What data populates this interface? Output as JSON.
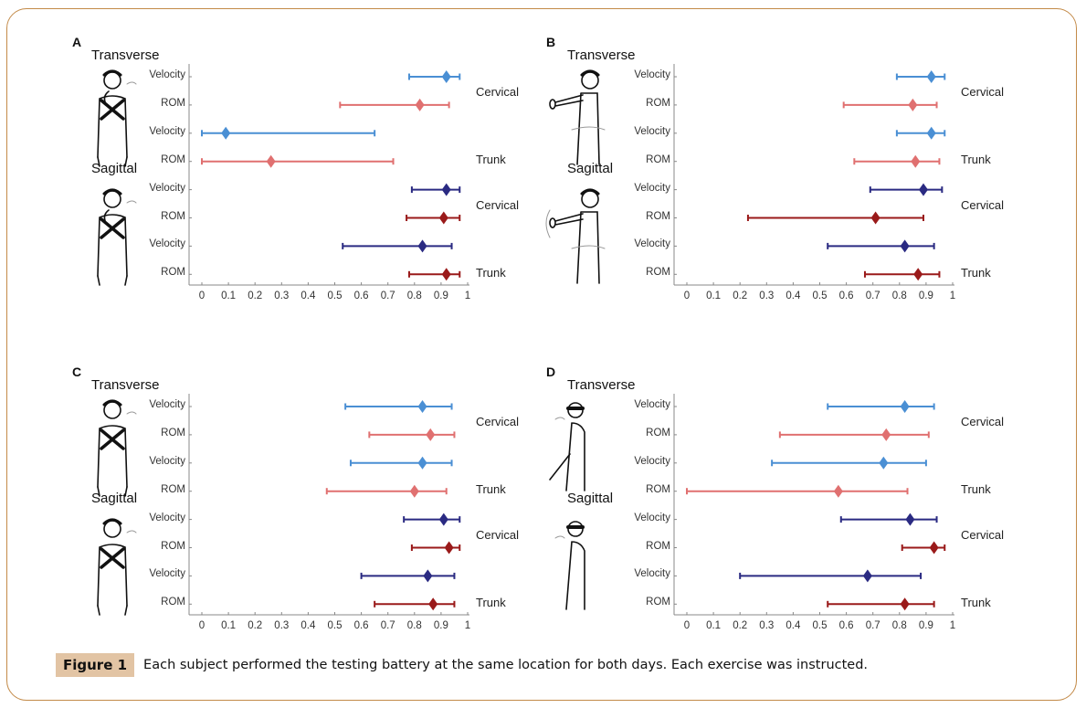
{
  "caption": {
    "tag": "Figure 1",
    "text": "Each subject performed the testing battery at the same location for both days. Each exercise was instructed."
  },
  "colors": {
    "transverse_velocity": "#4a8fd4",
    "transverse_rom": "#e07070",
    "sagittal_velocity": "#2a2a82",
    "sagittal_rom": "#9a1a1a",
    "frame": "#c38a48",
    "caption_tag_bg": "#e2c4a4"
  },
  "chart_data": [
    {
      "panel": "A",
      "type": "scatter",
      "subtype": "point-with-interval",
      "plane_titles": [
        "Transverse",
        "Sagittal"
      ],
      "region_labels": [
        "Cervical",
        "Trunk",
        "Cervical",
        "Trunk"
      ],
      "xlim": [
        0,
        1
      ],
      "xticks": [
        "0",
        "0.1",
        "0.2",
        "0.3",
        "0.4",
        "0.5",
        "0.6",
        "0.7",
        "0.8",
        "0.9",
        "1"
      ],
      "rows": [
        {
          "label": "Velocity",
          "plane": "Transverse",
          "region": "Cervical",
          "series": "transverse_velocity",
          "value": 0.92,
          "lower": 0.78,
          "upper": 0.97
        },
        {
          "label": "ROM",
          "plane": "Transverse",
          "region": "Cervical",
          "series": "transverse_rom",
          "value": 0.82,
          "lower": 0.52,
          "upper": 0.93
        },
        {
          "label": "Velocity",
          "plane": "Transverse",
          "region": "Trunk",
          "series": "transverse_velocity",
          "value": 0.09,
          "lower": 0.0,
          "upper": 0.65
        },
        {
          "label": "ROM",
          "plane": "Transverse",
          "region": "Trunk",
          "series": "transverse_rom",
          "value": 0.26,
          "lower": 0.0,
          "upper": 0.72
        },
        {
          "label": "Velocity",
          "plane": "Sagittal",
          "region": "Cervical",
          "series": "sagittal_velocity",
          "value": 0.92,
          "lower": 0.79,
          "upper": 0.97
        },
        {
          "label": "ROM",
          "plane": "Sagittal",
          "region": "Cervical",
          "series": "sagittal_rom",
          "value": 0.91,
          "lower": 0.77,
          "upper": 0.97
        },
        {
          "label": "Velocity",
          "plane": "Sagittal",
          "region": "Trunk",
          "series": "sagittal_velocity",
          "value": 0.83,
          "lower": 0.53,
          "upper": 0.94
        },
        {
          "label": "ROM",
          "plane": "Sagittal",
          "region": "Trunk",
          "series": "sagittal_rom",
          "value": 0.92,
          "lower": 0.78,
          "upper": 0.97
        }
      ]
    },
    {
      "panel": "B",
      "type": "scatter",
      "subtype": "point-with-interval",
      "plane_titles": [
        "Transverse",
        "Sagittal"
      ],
      "region_labels": [
        "Cervical",
        "Trunk",
        "Cervical",
        "Trunk"
      ],
      "xlim": [
        0,
        1
      ],
      "xticks": [
        "0",
        "0.1",
        "0.2",
        "0.3",
        "0.4",
        "0.5",
        "0.6",
        "0.7",
        "0.8",
        "0.9",
        "1"
      ],
      "rows": [
        {
          "label": "Velocity",
          "plane": "Transverse",
          "region": "Cervical",
          "series": "transverse_velocity",
          "value": 0.92,
          "lower": 0.79,
          "upper": 0.97
        },
        {
          "label": "ROM",
          "plane": "Transverse",
          "region": "Cervical",
          "series": "transverse_rom",
          "value": 0.85,
          "lower": 0.59,
          "upper": 0.94
        },
        {
          "label": "Velocity",
          "plane": "Transverse",
          "region": "Trunk",
          "series": "transverse_velocity",
          "value": 0.92,
          "lower": 0.79,
          "upper": 0.97
        },
        {
          "label": "ROM",
          "plane": "Transverse",
          "region": "Trunk",
          "series": "transverse_rom",
          "value": 0.86,
          "lower": 0.63,
          "upper": 0.95
        },
        {
          "label": "Velocity",
          "plane": "Sagittal",
          "region": "Cervical",
          "series": "sagittal_velocity",
          "value": 0.89,
          "lower": 0.69,
          "upper": 0.96
        },
        {
          "label": "ROM",
          "plane": "Sagittal",
          "region": "Cervical",
          "series": "sagittal_rom",
          "value": 0.71,
          "lower": 0.23,
          "upper": 0.89
        },
        {
          "label": "Velocity",
          "plane": "Sagittal",
          "region": "Trunk",
          "series": "sagittal_velocity",
          "value": 0.82,
          "lower": 0.53,
          "upper": 0.93
        },
        {
          "label": "ROM",
          "plane": "Sagittal",
          "region": "Trunk",
          "series": "sagittal_rom",
          "value": 0.87,
          "lower": 0.67,
          "upper": 0.95
        }
      ]
    },
    {
      "panel": "C",
      "type": "scatter",
      "subtype": "point-with-interval",
      "plane_titles": [
        "Transverse",
        "Sagittal"
      ],
      "region_labels": [
        "Cervical",
        "Trunk",
        "Cervical",
        "Trunk"
      ],
      "xlim": [
        0,
        1
      ],
      "xticks": [
        "0",
        "0.1",
        "0.2",
        "0.3",
        "0.4",
        "0.5",
        "0.6",
        "0.7",
        "0.8",
        "0.9",
        "1"
      ],
      "rows": [
        {
          "label": "Velocity",
          "plane": "Transverse",
          "region": "Cervical",
          "series": "transverse_velocity",
          "value": 0.83,
          "lower": 0.54,
          "upper": 0.94
        },
        {
          "label": "ROM",
          "plane": "Transverse",
          "region": "Cervical",
          "series": "transverse_rom",
          "value": 0.86,
          "lower": 0.63,
          "upper": 0.95
        },
        {
          "label": "Velocity",
          "plane": "Transverse",
          "region": "Trunk",
          "series": "transverse_velocity",
          "value": 0.83,
          "lower": 0.56,
          "upper": 0.94
        },
        {
          "label": "ROM",
          "plane": "Transverse",
          "region": "Trunk",
          "series": "transverse_rom",
          "value": 0.8,
          "lower": 0.47,
          "upper": 0.92
        },
        {
          "label": "Velocity",
          "plane": "Sagittal",
          "region": "Cervical",
          "series": "sagittal_velocity",
          "value": 0.91,
          "lower": 0.76,
          "upper": 0.97
        },
        {
          "label": "ROM",
          "plane": "Sagittal",
          "region": "Cervical",
          "series": "sagittal_rom",
          "value": 0.93,
          "lower": 0.79,
          "upper": 0.97
        },
        {
          "label": "Velocity",
          "plane": "Sagittal",
          "region": "Trunk",
          "series": "sagittal_velocity",
          "value": 0.85,
          "lower": 0.6,
          "upper": 0.95
        },
        {
          "label": "ROM",
          "plane": "Sagittal",
          "region": "Trunk",
          "series": "sagittal_rom",
          "value": 0.87,
          "lower": 0.65,
          "upper": 0.95
        }
      ]
    },
    {
      "panel": "D",
      "type": "scatter",
      "subtype": "point-with-interval",
      "plane_titles": [
        "Transverse",
        "Sagittal"
      ],
      "region_labels": [
        "Cervical",
        "Trunk",
        "Cervical",
        "Trunk"
      ],
      "xlim": [
        0,
        1
      ],
      "xticks": [
        "0",
        "0.1",
        "0.2",
        "0.3",
        "0.4",
        "0.5",
        "0.6",
        "0.7",
        "0.8",
        "0.9",
        "1"
      ],
      "rows": [
        {
          "label": "Velocity",
          "plane": "Transverse",
          "region": "Cervical",
          "series": "transverse_velocity",
          "value": 0.82,
          "lower": 0.53,
          "upper": 0.93
        },
        {
          "label": "ROM",
          "plane": "Transverse",
          "region": "Cervical",
          "series": "transverse_rom",
          "value": 0.75,
          "lower": 0.35,
          "upper": 0.91
        },
        {
          "label": "Velocity",
          "plane": "Transverse",
          "region": "Trunk",
          "series": "transverse_velocity",
          "value": 0.74,
          "lower": 0.32,
          "upper": 0.9
        },
        {
          "label": "ROM",
          "plane": "Transverse",
          "region": "Trunk",
          "series": "transverse_rom",
          "value": 0.57,
          "lower": 0.0,
          "upper": 0.83
        },
        {
          "label": "Velocity",
          "plane": "Sagittal",
          "region": "Cervical",
          "series": "sagittal_velocity",
          "value": 0.84,
          "lower": 0.58,
          "upper": 0.94
        },
        {
          "label": "ROM",
          "plane": "Sagittal",
          "region": "Cervical",
          "series": "sagittal_rom",
          "value": 0.93,
          "lower": 0.81,
          "upper": 0.97
        },
        {
          "label": "Velocity",
          "plane": "Sagittal",
          "region": "Trunk",
          "series": "sagittal_velocity",
          "value": 0.68,
          "lower": 0.2,
          "upper": 0.88
        },
        {
          "label": "ROM",
          "plane": "Sagittal",
          "region": "Trunk",
          "series": "sagittal_rom",
          "value": 0.82,
          "lower": 0.53,
          "upper": 0.93
        }
      ]
    }
  ]
}
